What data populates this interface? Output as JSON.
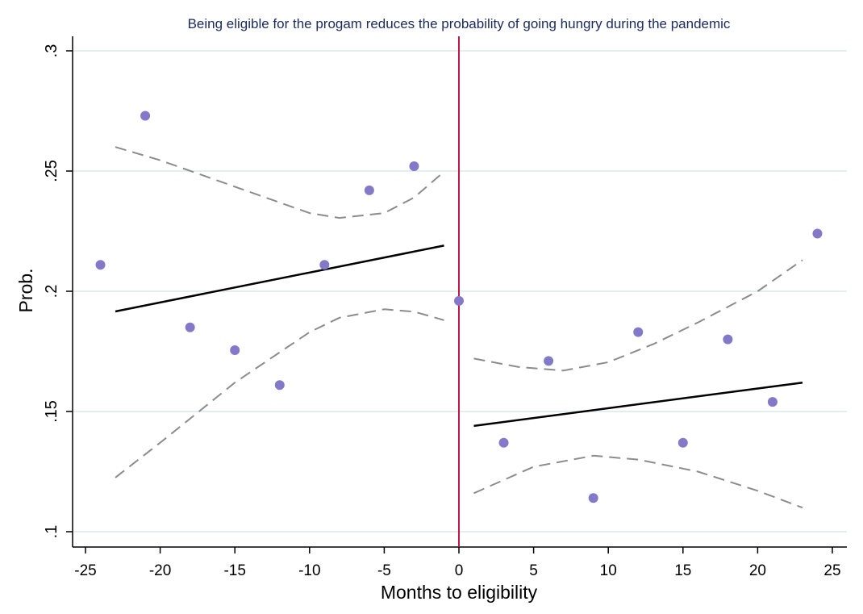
{
  "chart_data": {
    "type": "scatter",
    "title": "Being eligible for the progam reduces the probability of going hungry during the pandemic",
    "xlabel": "Months to eligibility",
    "ylabel": "Prob.",
    "xlim": [
      -26,
      26.5
    ],
    "ylim": [
      0.095,
      0.305
    ],
    "xticks": [
      -25,
      -20,
      -15,
      -10,
      -5,
      0,
      5,
      10,
      15,
      20,
      25
    ],
    "xtick_labels": [
      "-25",
      "-20",
      "-15",
      "-10",
      "-5",
      "0",
      "5",
      "10",
      "15",
      "20",
      "25"
    ],
    "yticks": [
      0.1,
      0.15,
      0.2,
      0.25,
      0.3
    ],
    "ytick_labels": [
      ".1",
      ".15",
      ".2",
      ".25",
      ".3"
    ],
    "grid": true,
    "cutoff": 0,
    "colors": {
      "points": "#8479c8",
      "fit": "#000000",
      "ci": "#8c8c8c",
      "cutoff": "#c0174a",
      "grid": "#e4eeee"
    },
    "points": {
      "x": [
        -24,
        -21,
        -18,
        -15,
        -12,
        -9,
        -6,
        -3,
        0,
        3,
        6,
        9,
        12,
        15,
        18,
        21,
        24
      ],
      "y": [
        0.211,
        0.273,
        0.185,
        0.1755,
        0.161,
        0.211,
        0.242,
        0.252,
        0.196,
        0.137,
        0.171,
        0.114,
        0.183,
        0.137,
        0.18,
        0.154,
        0.224
      ]
    },
    "fit_left": {
      "x": [
        -23,
        -1
      ],
      "y": [
        0.1916,
        0.219
      ]
    },
    "fit_right": {
      "x": [
        1,
        23
      ],
      "y": [
        0.144,
        0.162
      ]
    },
    "ci_left_upper": {
      "x": [
        -23,
        -20,
        -15,
        -10,
        -8,
        -5,
        -3,
        -1
      ],
      "y": [
        0.26,
        0.2545,
        0.2435,
        0.2325,
        0.2305,
        0.2325,
        0.239,
        0.2497
      ]
    },
    "ci_left_lower": {
      "x": [
        -23,
        -20,
        -15,
        -10,
        -8,
        -5,
        -3,
        -1
      ],
      "y": [
        0.1225,
        0.137,
        0.162,
        0.183,
        0.189,
        0.1925,
        0.1915,
        0.188
      ]
    },
    "ci_right_upper": {
      "x": [
        1,
        4,
        7,
        10,
        13,
        16,
        20,
        23
      ],
      "y": [
        0.172,
        0.1685,
        0.167,
        0.1705,
        0.178,
        0.187,
        0.2,
        0.213
      ]
    },
    "ci_right_lower": {
      "x": [
        1,
        5,
        9,
        12,
        16,
        20,
        23
      ],
      "y": [
        0.116,
        0.127,
        0.1316,
        0.13,
        0.125,
        0.117,
        0.11
      ]
    }
  }
}
